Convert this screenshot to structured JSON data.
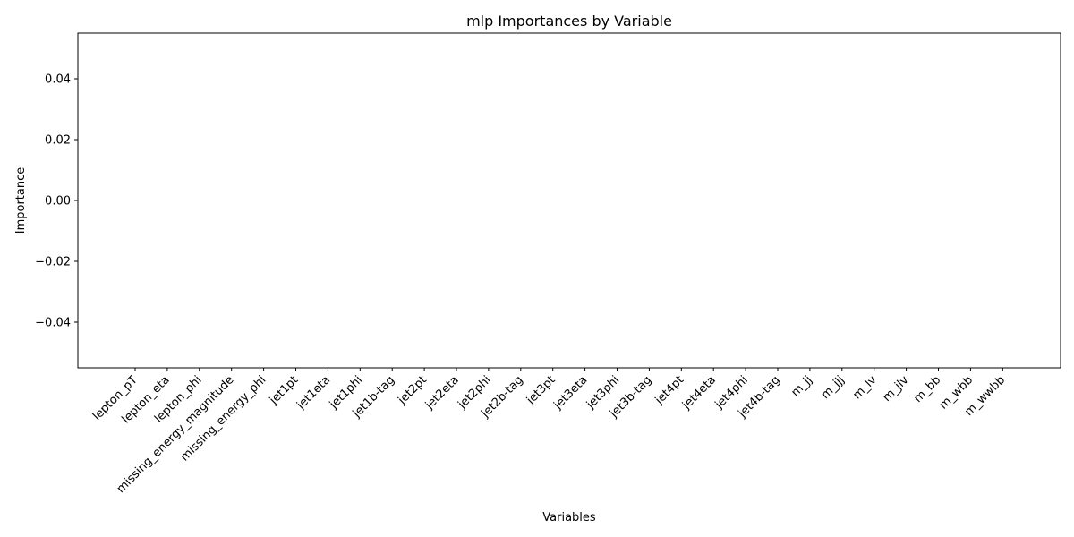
{
  "chart_data": {
    "type": "bar",
    "title": "mlp Importances by Variable",
    "xlabel": "Variables",
    "ylabel": "Importance",
    "categories": [
      "lepton_pT",
      "lepton_eta",
      "lepton_phi",
      "missing_energy_magnitude",
      "missing_energy_phi",
      "jet1pt",
      "jet1eta",
      "jet1phi",
      "jet1b-tag",
      "jet2pt",
      "jet2eta",
      "jet2phi",
      "jet2b-tag",
      "jet3pt",
      "jet3eta",
      "jet3phi",
      "jet3b-tag",
      "jet4pt",
      "jet4eta",
      "jet4phi",
      "jet4b-tag",
      "m_jj",
      "m_jjj",
      "m_lv",
      "m_jlv",
      "m_bb",
      "m_wbb",
      "m_wwbb"
    ],
    "values": [
      0,
      0,
      0,
      0,
      0,
      0,
      0,
      0,
      0,
      0,
      0,
      0,
      0,
      0,
      0,
      0,
      0,
      0,
      0,
      0,
      0,
      0,
      0,
      0,
      0,
      0,
      0,
      0
    ],
    "ylim": [
      -0.055,
      0.055
    ],
    "yticks": [
      -0.04,
      -0.02,
      0.0,
      0.02,
      0.04
    ],
    "ytick_labels": [
      "−0.04",
      "−0.02",
      "0.00",
      "0.02",
      "0.04"
    ],
    "grid": false,
    "bar_color": "#1f77b4"
  }
}
